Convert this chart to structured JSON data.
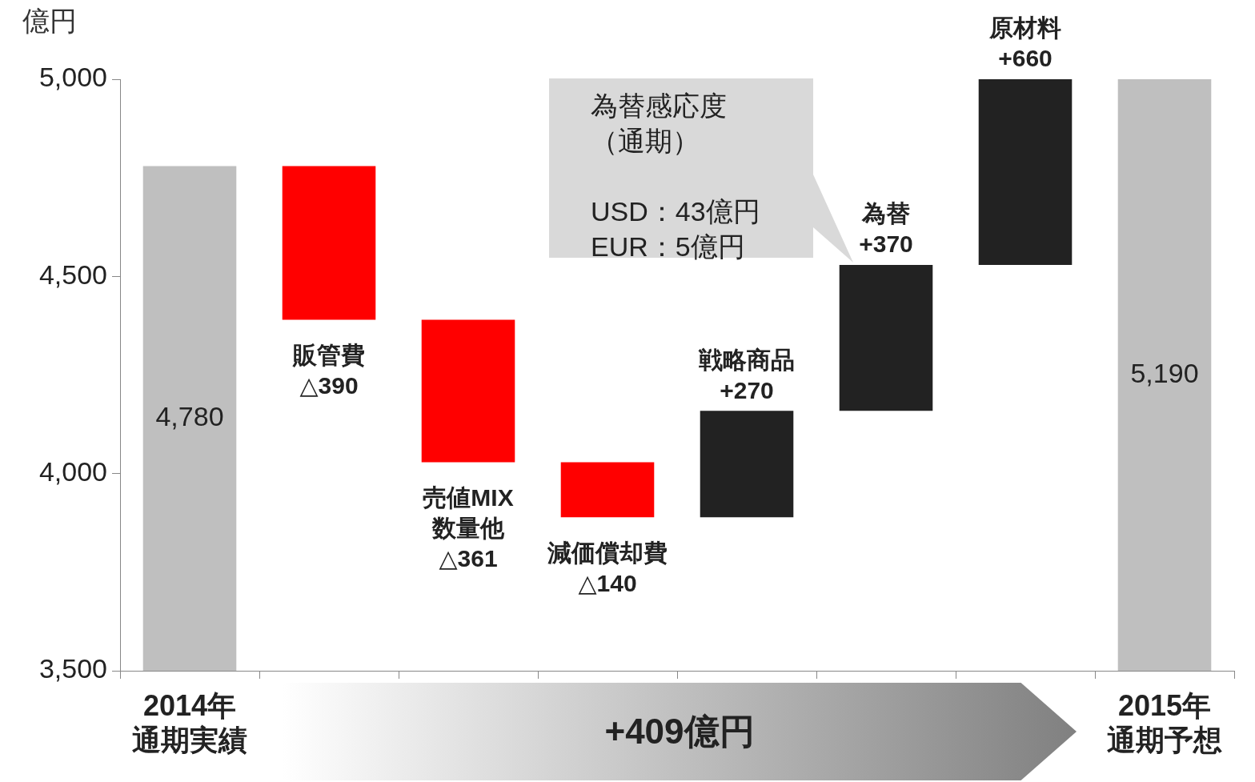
{
  "chart_data": {
    "type": "bar",
    "ylabel": "億円",
    "categories": [
      "2014年通期実績",
      null,
      null,
      null,
      null,
      null,
      null,
      "2015年通期予想"
    ],
    "values": [
      4780,
      -390,
      -361,
      -140,
      270,
      370,
      660,
      5190
    ],
    "base": [
      null,
      4780,
      4390,
      4029,
      3889,
      4159,
      4529,
      null
    ],
    "colors": [
      "#bfbfbf",
      "#ff0000",
      "#ff0000",
      "#ff0000",
      "#222222",
      "#222222",
      "#222222",
      "#bfbfbf"
    ],
    "value_labels": [
      "4,780",
      "販管費\n△390",
      "売値MIX\n数量他\n△361",
      "減価償却費\n△140",
      "戦略商品\n+270",
      "為替\n+370",
      "原材料\n+660",
      "5,190"
    ],
    "ylim": [
      3500,
      5000
    ],
    "yticks": [
      {
        "value": 3500,
        "label": "3,500"
      },
      {
        "value": 4000,
        "label": "4,000"
      },
      {
        "value": 4500,
        "label": "4,500"
      },
      {
        "value": 5000,
        "label": "5,000"
      }
    ],
    "grid": false,
    "legend": false,
    "annotations": [
      "為替感応度（通期）\n\nUSD：43億円\nEUR：5億円",
      "+409億円"
    ]
  }
}
